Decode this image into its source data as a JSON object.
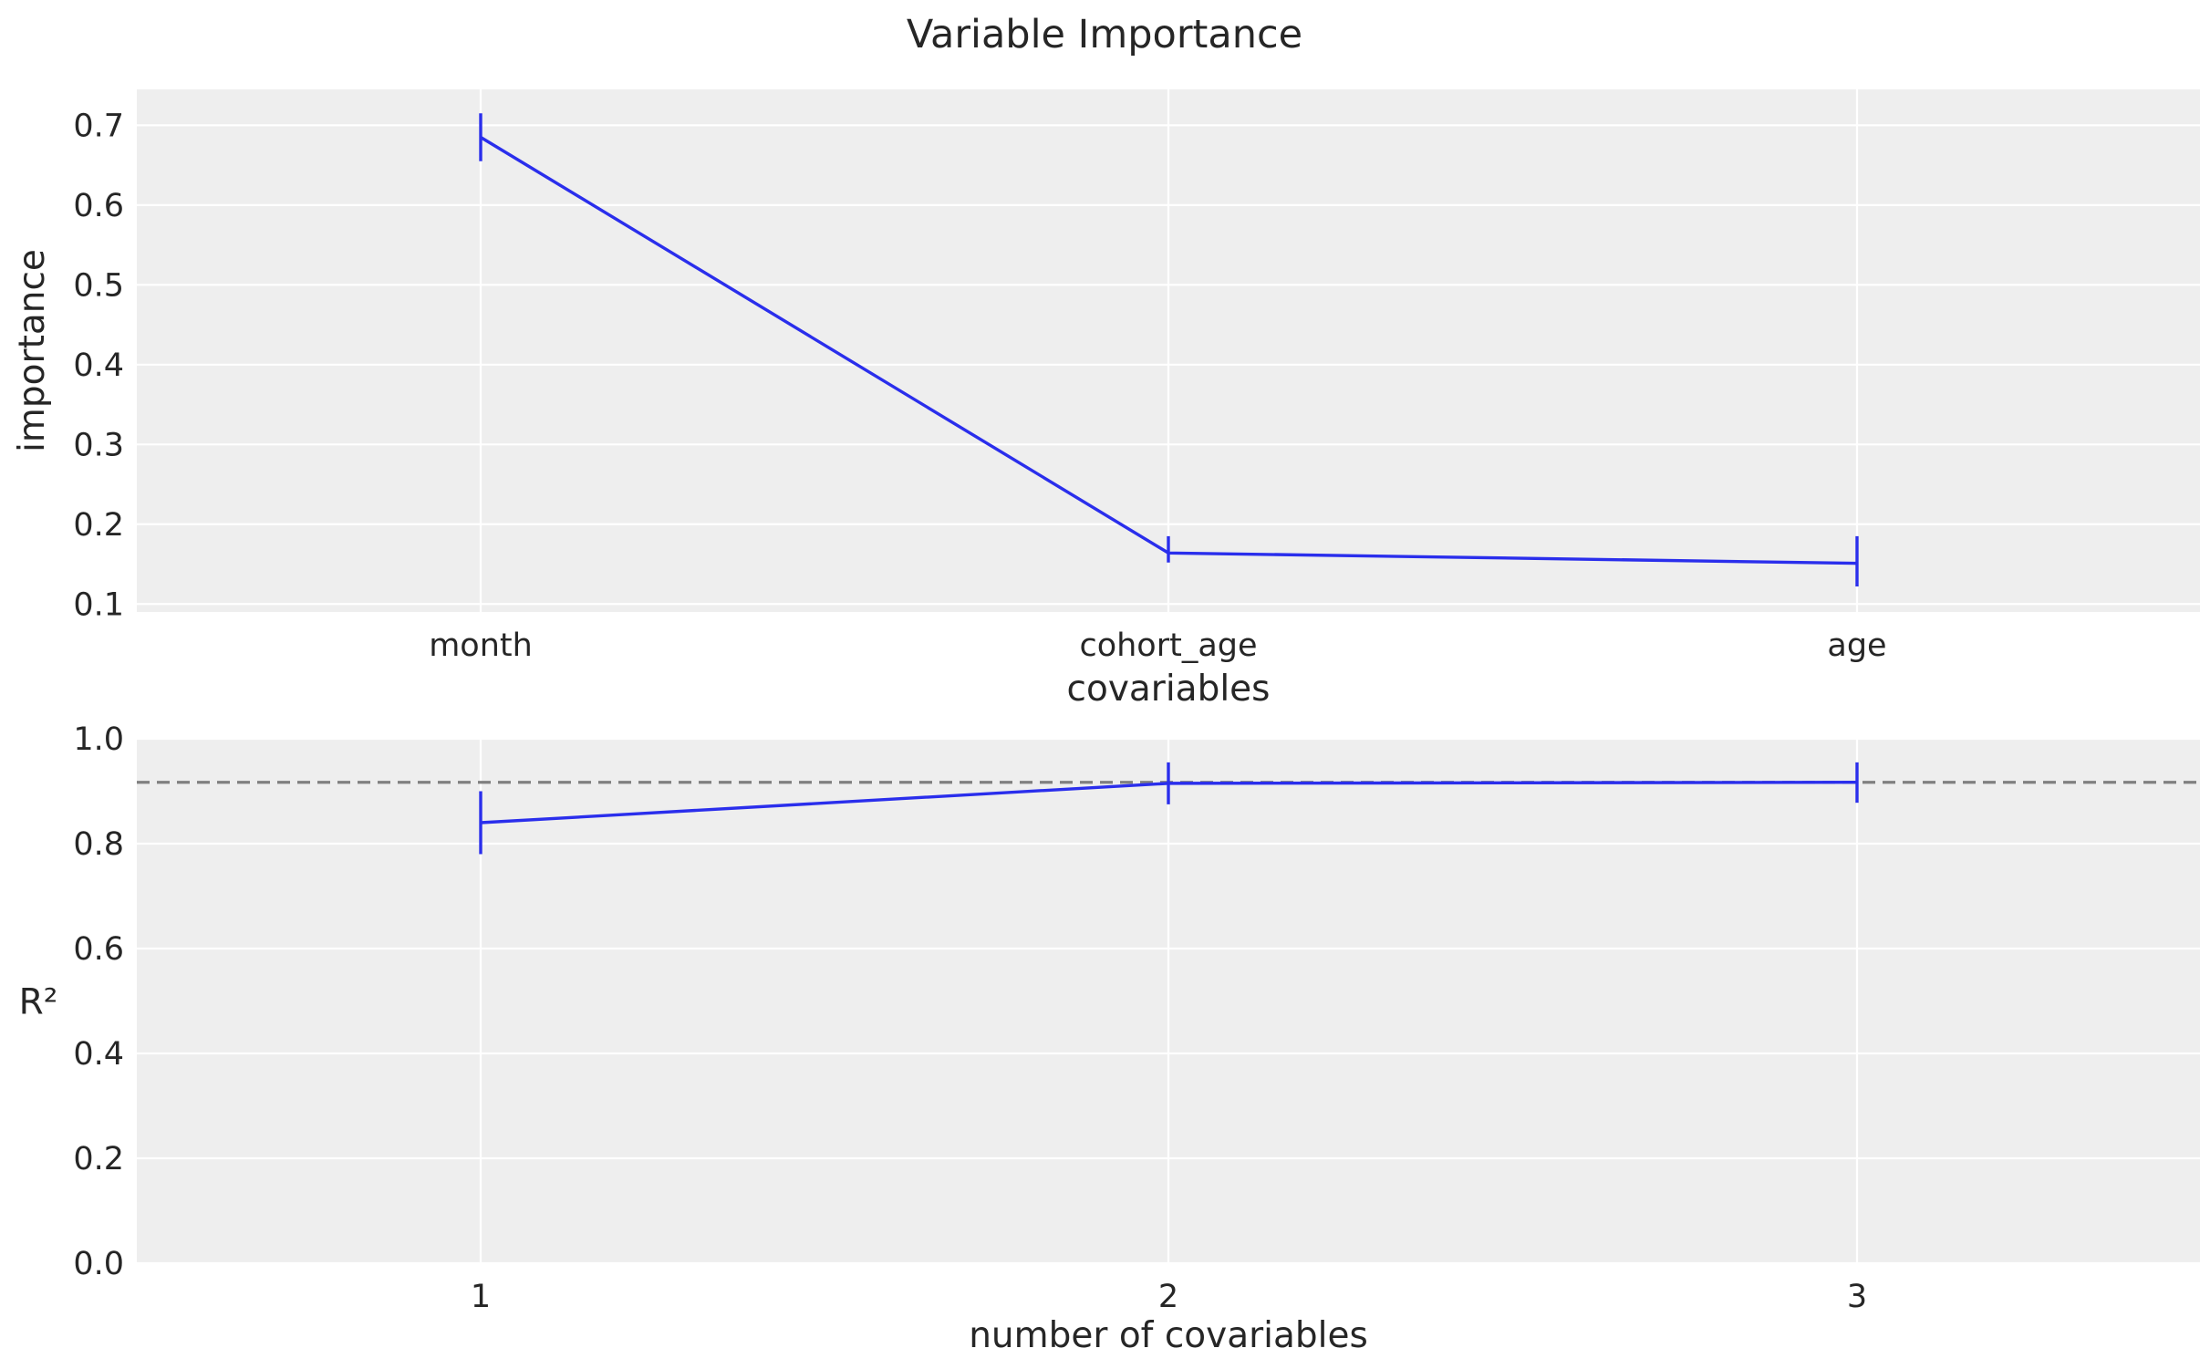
{
  "title": "Variable Importance",
  "colors": {
    "series": "#2a2eec",
    "reference": "#808080",
    "panel": "#eeeeee",
    "grid": "#ffffff",
    "text": "#262626"
  },
  "chart_data": [
    {
      "type": "line",
      "name": "importance-panel",
      "categories": [
        "month",
        "cohort_age",
        "age"
      ],
      "values": [
        0.685,
        0.164,
        0.151
      ],
      "error_low": [
        0.655,
        0.152,
        0.122
      ],
      "error_high": [
        0.715,
        0.185,
        0.185
      ],
      "xlabel": "covariables",
      "ylabel": "importance",
      "ylim": [
        0.09,
        0.745
      ],
      "yticks": [
        0.1,
        0.2,
        0.3,
        0.4,
        0.5,
        0.6,
        0.7
      ],
      "ytick_labels": [
        "0.1",
        "0.2",
        "0.3",
        "0.4",
        "0.5",
        "0.6",
        "0.7"
      ],
      "grid": true
    },
    {
      "type": "line",
      "name": "r2-panel",
      "x": [
        1,
        2,
        3
      ],
      "xtick_labels": [
        "1",
        "2",
        "3"
      ],
      "values": [
        0.84,
        0.915,
        0.917
      ],
      "error_low": [
        0.78,
        0.875,
        0.878
      ],
      "error_high": [
        0.9,
        0.955,
        0.955
      ],
      "reference_line": 0.917,
      "xlabel": "number of covariables",
      "ylabel": "R²",
      "ylim": [
        0.0,
        1.0
      ],
      "yticks": [
        0.0,
        0.2,
        0.4,
        0.6,
        0.8,
        1.0
      ],
      "ytick_labels": [
        "0.0",
        "0.2",
        "0.4",
        "0.6",
        "0.8",
        "1.0"
      ],
      "grid": true
    }
  ]
}
